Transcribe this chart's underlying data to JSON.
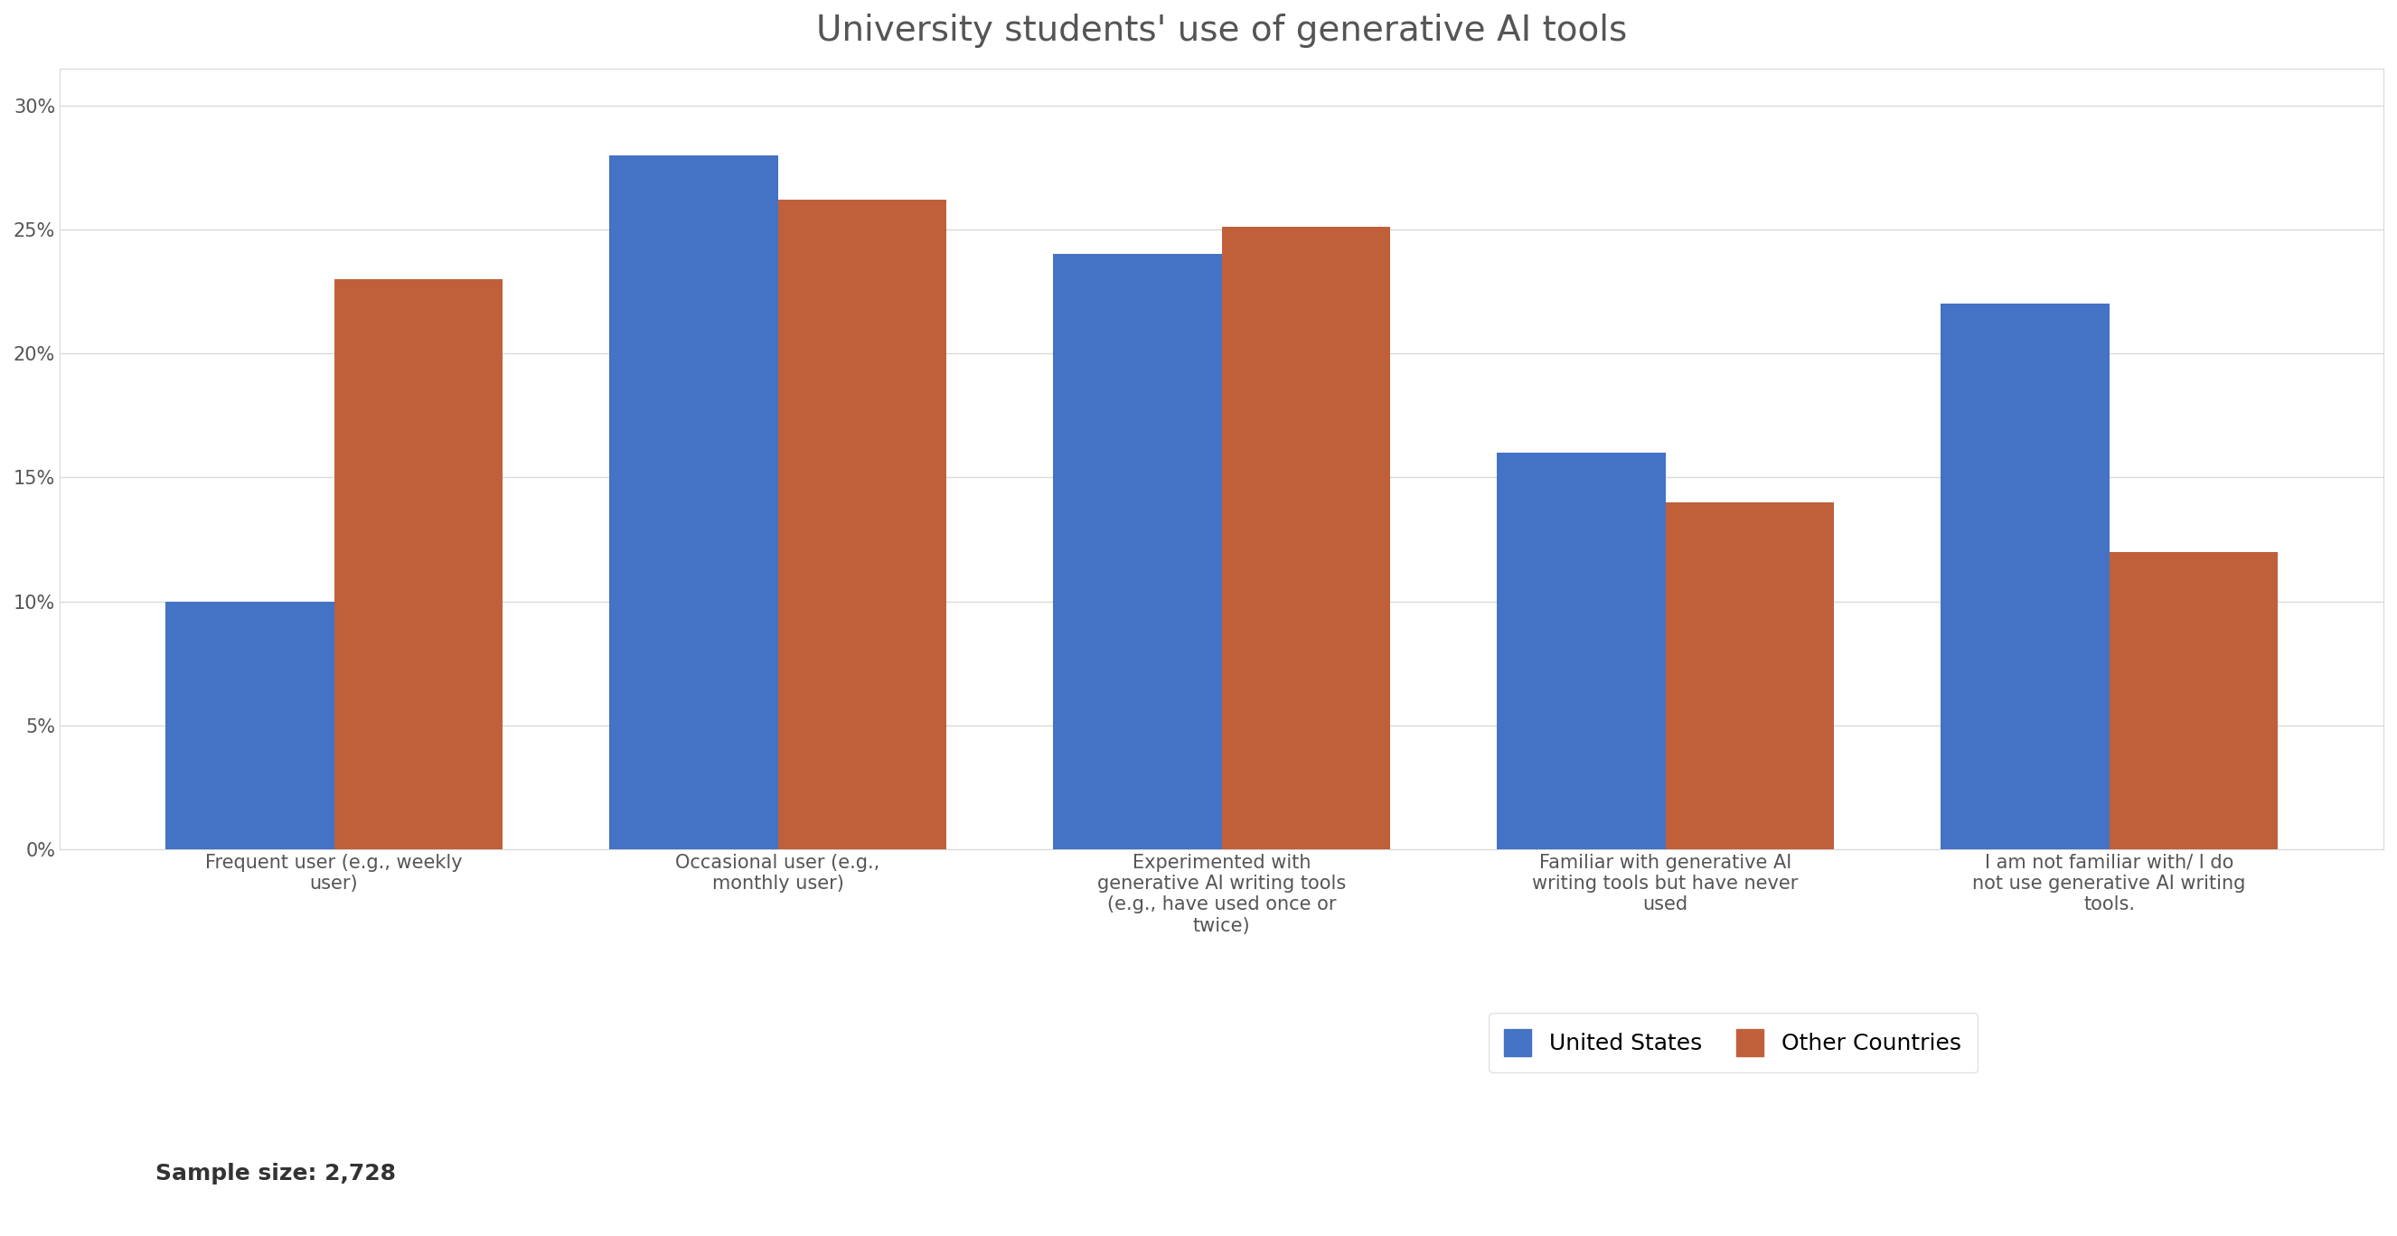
{
  "title": "University students' use of generative AI tools",
  "categories": [
    "Frequent user (e.g., weekly\nuser)",
    "Occasional user (e.g.,\nmonthly user)",
    "Experimented with\ngenerative AI writing tools\n(e.g., have used once or\ntwice)",
    "Familiar with generative AI\nwriting tools but have never\nused",
    "I am not familiar with/ I do\nnot use generative AI writing\ntools."
  ],
  "us_values": [
    0.1,
    0.28,
    0.24,
    0.16,
    0.22
  ],
  "other_values": [
    0.23,
    0.262,
    0.251,
    0.14,
    0.12
  ],
  "us_color": "#4472C4",
  "other_color": "#C0603A",
  "us_label": "United States",
  "other_label": "Other Countries",
  "sample_size_text": "Sample size: 2,728",
  "ylim": [
    0,
    0.315
  ],
  "yticks": [
    0.0,
    0.05,
    0.1,
    0.15,
    0.2,
    0.25,
    0.3
  ],
  "ytick_labels": [
    "0%",
    "5%",
    "10%",
    "15%",
    "20%",
    "25%",
    "30%"
  ],
  "background_color": "#ffffff",
  "grid_color": "#d9d9d9",
  "title_fontsize": 28,
  "tick_fontsize": 15,
  "legend_fontsize": 18,
  "sample_fontsize": 18,
  "bar_width": 0.38
}
